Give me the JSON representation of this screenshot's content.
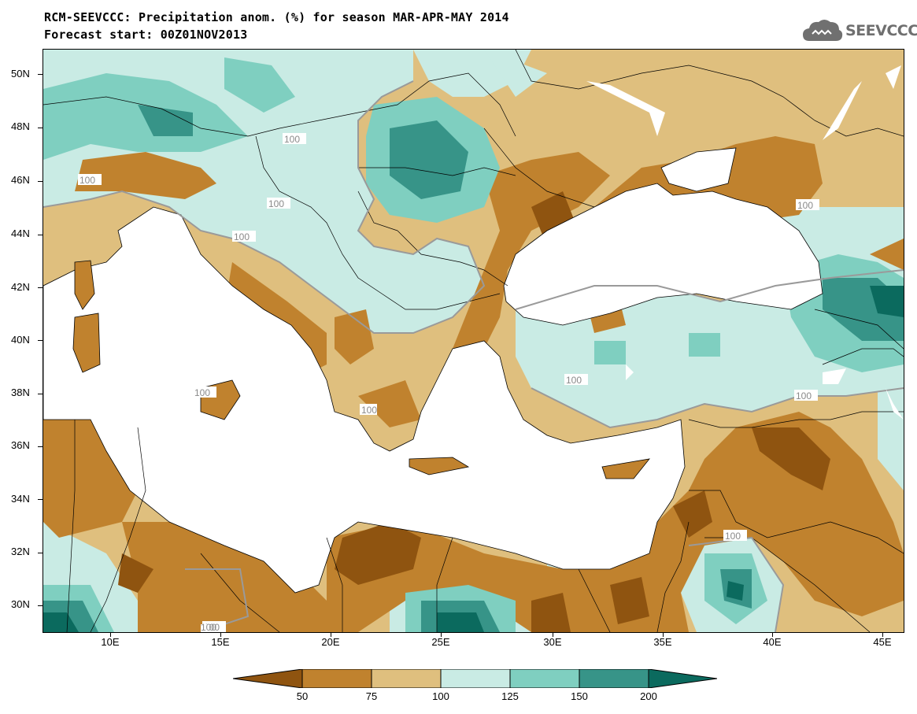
{
  "title": {
    "line1": "RCM-SEEVCCC: Precipitation anom. (%) for season MAR-APR-MAY 2014",
    "line2": "Forecast start: 00Z01NOV2013"
  },
  "logo": {
    "text": "SEEVCCC",
    "icon": "cloud-icon"
  },
  "axes": {
    "y_ticks": [
      "50N",
      "48N",
      "46N",
      "44N",
      "42N",
      "40N",
      "38N",
      "36N",
      "34N",
      "32N",
      "30N"
    ],
    "x_ticks": [
      "10E",
      "15E",
      "20E",
      "25E",
      "30E",
      "35E",
      "40E",
      "45E"
    ]
  },
  "contour_labels": [
    "100",
    "100",
    "100",
    "100",
    "100",
    "100",
    "100",
    "100",
    "100",
    "100",
    "100",
    "100"
  ],
  "colorbar": {
    "labels": [
      "50",
      "75",
      "100",
      "125",
      "150",
      "200"
    ],
    "colors": [
      "#8f5410",
      "#c0822e",
      "#dfbf7e",
      "#c9ebe4",
      "#7fcfc0",
      "#379488",
      "#0b6a5e"
    ]
  }
}
